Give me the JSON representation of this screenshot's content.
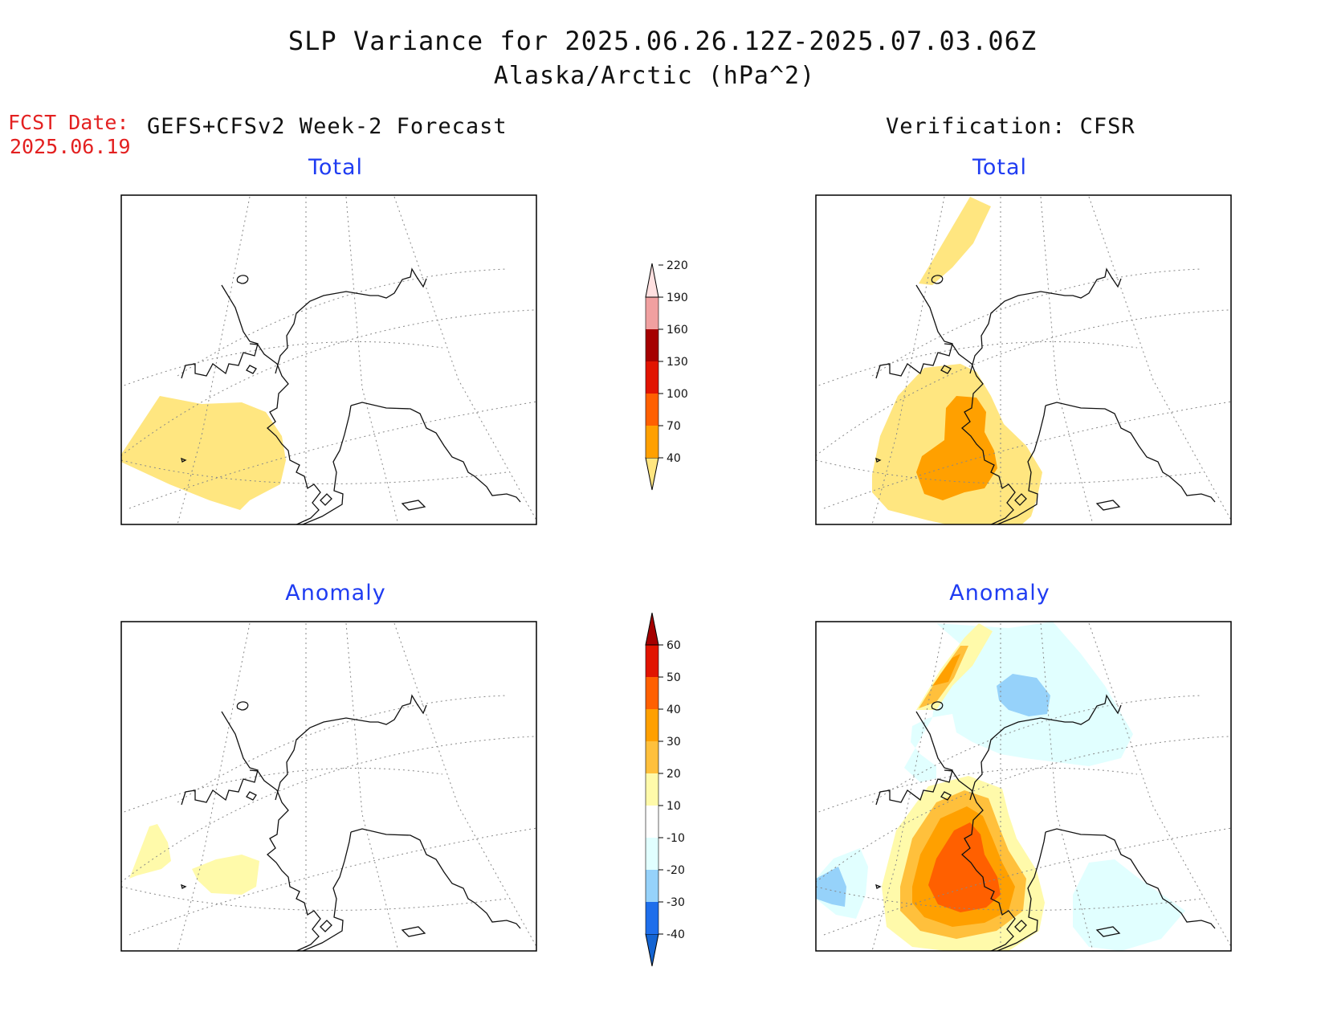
{
  "header": {
    "title": "SLP Variance for 2025.06.26.12Z-2025.07.03.06Z",
    "subtitle": "Alaska/Arctic (hPa^2)",
    "fcst_label": "FCST Date:",
    "fcst_date": "2025.06.19",
    "left_heading": "GEFS+CFSv2 Week-2 Forecast",
    "right_heading": "Verification: CFSR"
  },
  "panels": [
    {
      "id": "forecast-total",
      "title": "Total"
    },
    {
      "id": "verification-total",
      "title": "Total"
    },
    {
      "id": "forecast-anomaly",
      "title": "Anomaly"
    },
    {
      "id": "verification-anomaly",
      "title": "Anomaly"
    }
  ],
  "colorbars": {
    "total": {
      "labels": [
        "40",
        "70",
        "100",
        "130",
        "160",
        "190",
        "220"
      ],
      "colors": [
        "#ffe680",
        "#ffa000",
        "#ff6000",
        "#e11400",
        "#a50000",
        "#f0a0a0",
        "#ffe0e0"
      ]
    },
    "anomaly": {
      "labels": [
        "-40",
        "-30",
        "-20",
        "-10",
        "10",
        "20",
        "30",
        "40",
        "50",
        "60"
      ],
      "colors": [
        "#1464d2",
        "#1e6eeb",
        "#96d2fa",
        "#e1ffff",
        "#ffffff",
        "#fffaaa",
        "#ffc03c",
        "#ffa000",
        "#ff6000",
        "#e11400",
        "#a50000"
      ]
    }
  }
}
